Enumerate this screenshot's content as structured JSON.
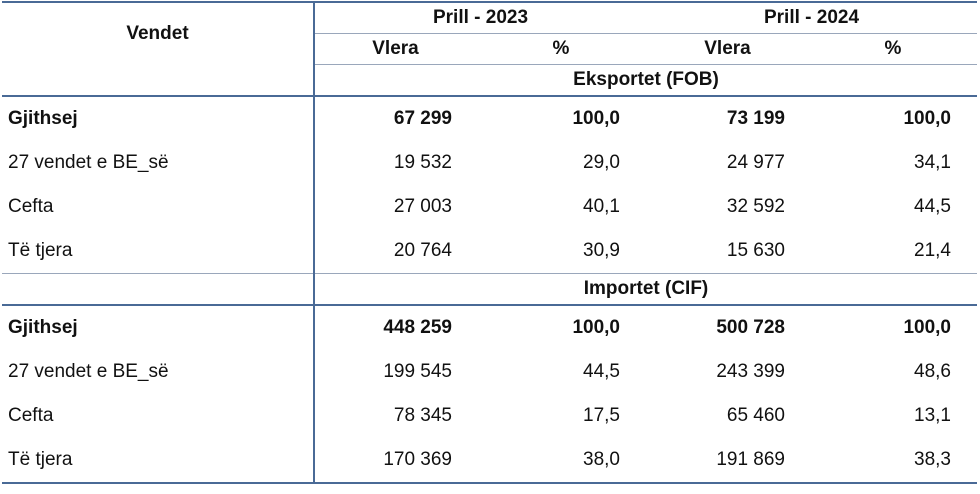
{
  "header": {
    "country_col": "Vendet",
    "period_2023": "Prill -  2023",
    "period_2024": "Prill - 2024",
    "value_label": "Vlera",
    "percent_label": "%"
  },
  "sections": [
    {
      "title": "Eksportet (FOB)",
      "rows": [
        {
          "label": "Gjithsej",
          "v2023": "67 299",
          "p2023": "100,0",
          "v2024": "73 199",
          "p2024": "100,0"
        },
        {
          "label": "27 vendet e BE_së",
          "v2023": "19 532",
          "p2023": "29,0",
          "v2024": "24 977",
          "p2024": "34,1"
        },
        {
          "label": "Cefta",
          "v2023": "27 003",
          "p2023": "40,1",
          "v2024": "32 592",
          "p2024": "44,5"
        },
        {
          "label": "Të tjera",
          "v2023": "20 764",
          "p2023": "30,9",
          "v2024": "15 630",
          "p2024": "21,4"
        }
      ]
    },
    {
      "title": "Importet (CIF)",
      "rows": [
        {
          "label": "Gjithsej",
          "v2023": "448 259",
          "p2023": "100,0",
          "v2024": "500 728",
          "p2024": "100,0"
        },
        {
          "label": "27 vendet e BE_së",
          "v2023": "199 545",
          "p2023": "44,5",
          "v2024": "243 399",
          "p2024": "48,6"
        },
        {
          "label": "Cefta",
          "v2023": "78 345",
          "p2023": "17,5",
          "v2024": "65 460",
          "p2024": "13,1"
        },
        {
          "label": "Të tjera",
          "v2023": "170 369",
          "p2023": "38,0",
          "v2024": "191 869",
          "p2024": "38,3"
        }
      ]
    }
  ]
}
